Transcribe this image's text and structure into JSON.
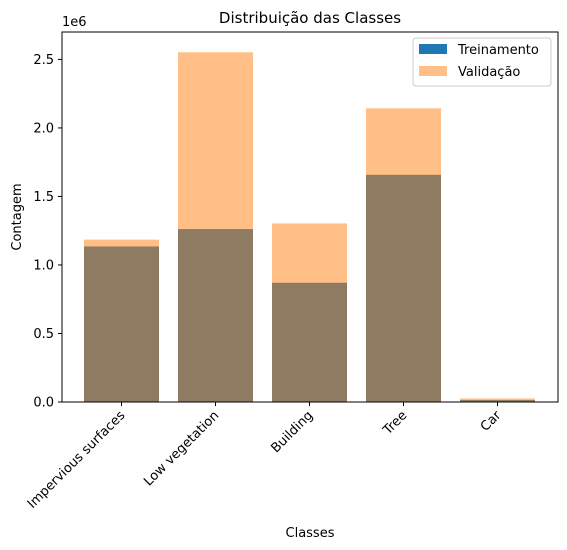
{
  "chart_data": {
    "type": "bar",
    "title": "Distribuição das Classes",
    "xlabel": "Classes",
    "ylabel": "Contagem",
    "offset_label": "1e6",
    "categories": [
      "Impervious surfaces",
      "Low vegetation",
      "Building",
      "Tree",
      "Car"
    ],
    "series": [
      {
        "name": "Treinamento",
        "color": "#1f77b4",
        "opacity": 1.0,
        "values": [
          1135000,
          1262000,
          870000,
          1658000,
          14000
        ]
      },
      {
        "name": "Validação",
        "color": "#ff7f0e",
        "opacity": 0.5,
        "values": [
          1185000,
          2552000,
          1303000,
          2143000,
          26000
        ]
      }
    ],
    "ylim": [
      0,
      2700000
    ],
    "yticks": [
      0,
      500000,
      1000000,
      1500000,
      2000000,
      2500000
    ],
    "ytick_labels": [
      "0.0",
      "0.5",
      "1.0",
      "1.5",
      "2.0",
      "2.5"
    ],
    "grid": false,
    "legend_position": "top-right"
  }
}
